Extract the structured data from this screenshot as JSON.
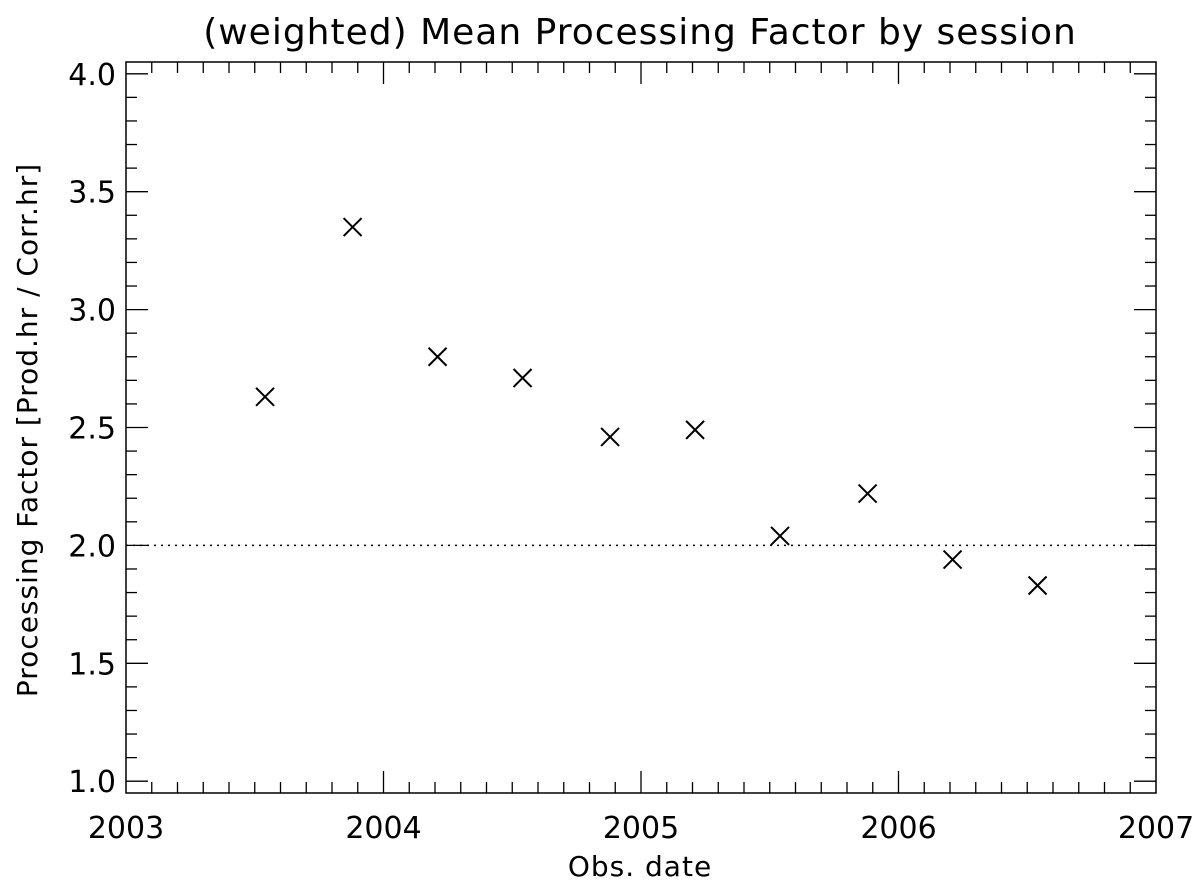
{
  "chart_data": {
    "type": "scatter",
    "title": "(weighted) Mean Processing Factor by session",
    "xlabel": "Obs. date",
    "ylabel": "Processing Factor [Prod.hr / Corr.hr]",
    "xlim": [
      2003,
      2007
    ],
    "ylim": [
      0.95,
      4.05
    ],
    "x_ticks": [
      "2003",
      "2004",
      "2005",
      "2006",
      "2007"
    ],
    "y_ticks": [
      "1.0",
      "1.5",
      "2.0",
      "2.5",
      "3.0",
      "3.5",
      "4.0"
    ],
    "marker": "x",
    "reference_line": {
      "y": 2.0,
      "style": "dotted"
    },
    "grid": false,
    "points": [
      {
        "x": 2003.54,
        "y": 2.63
      },
      {
        "x": 2003.88,
        "y": 3.35
      },
      {
        "x": 2004.21,
        "y": 2.8
      },
      {
        "x": 2004.54,
        "y": 2.71
      },
      {
        "x": 2004.88,
        "y": 2.46
      },
      {
        "x": 2005.21,
        "y": 2.49
      },
      {
        "x": 2005.54,
        "y": 2.04
      },
      {
        "x": 2005.88,
        "y": 2.22
      },
      {
        "x": 2006.21,
        "y": 1.94
      },
      {
        "x": 2006.54,
        "y": 1.83
      }
    ]
  }
}
